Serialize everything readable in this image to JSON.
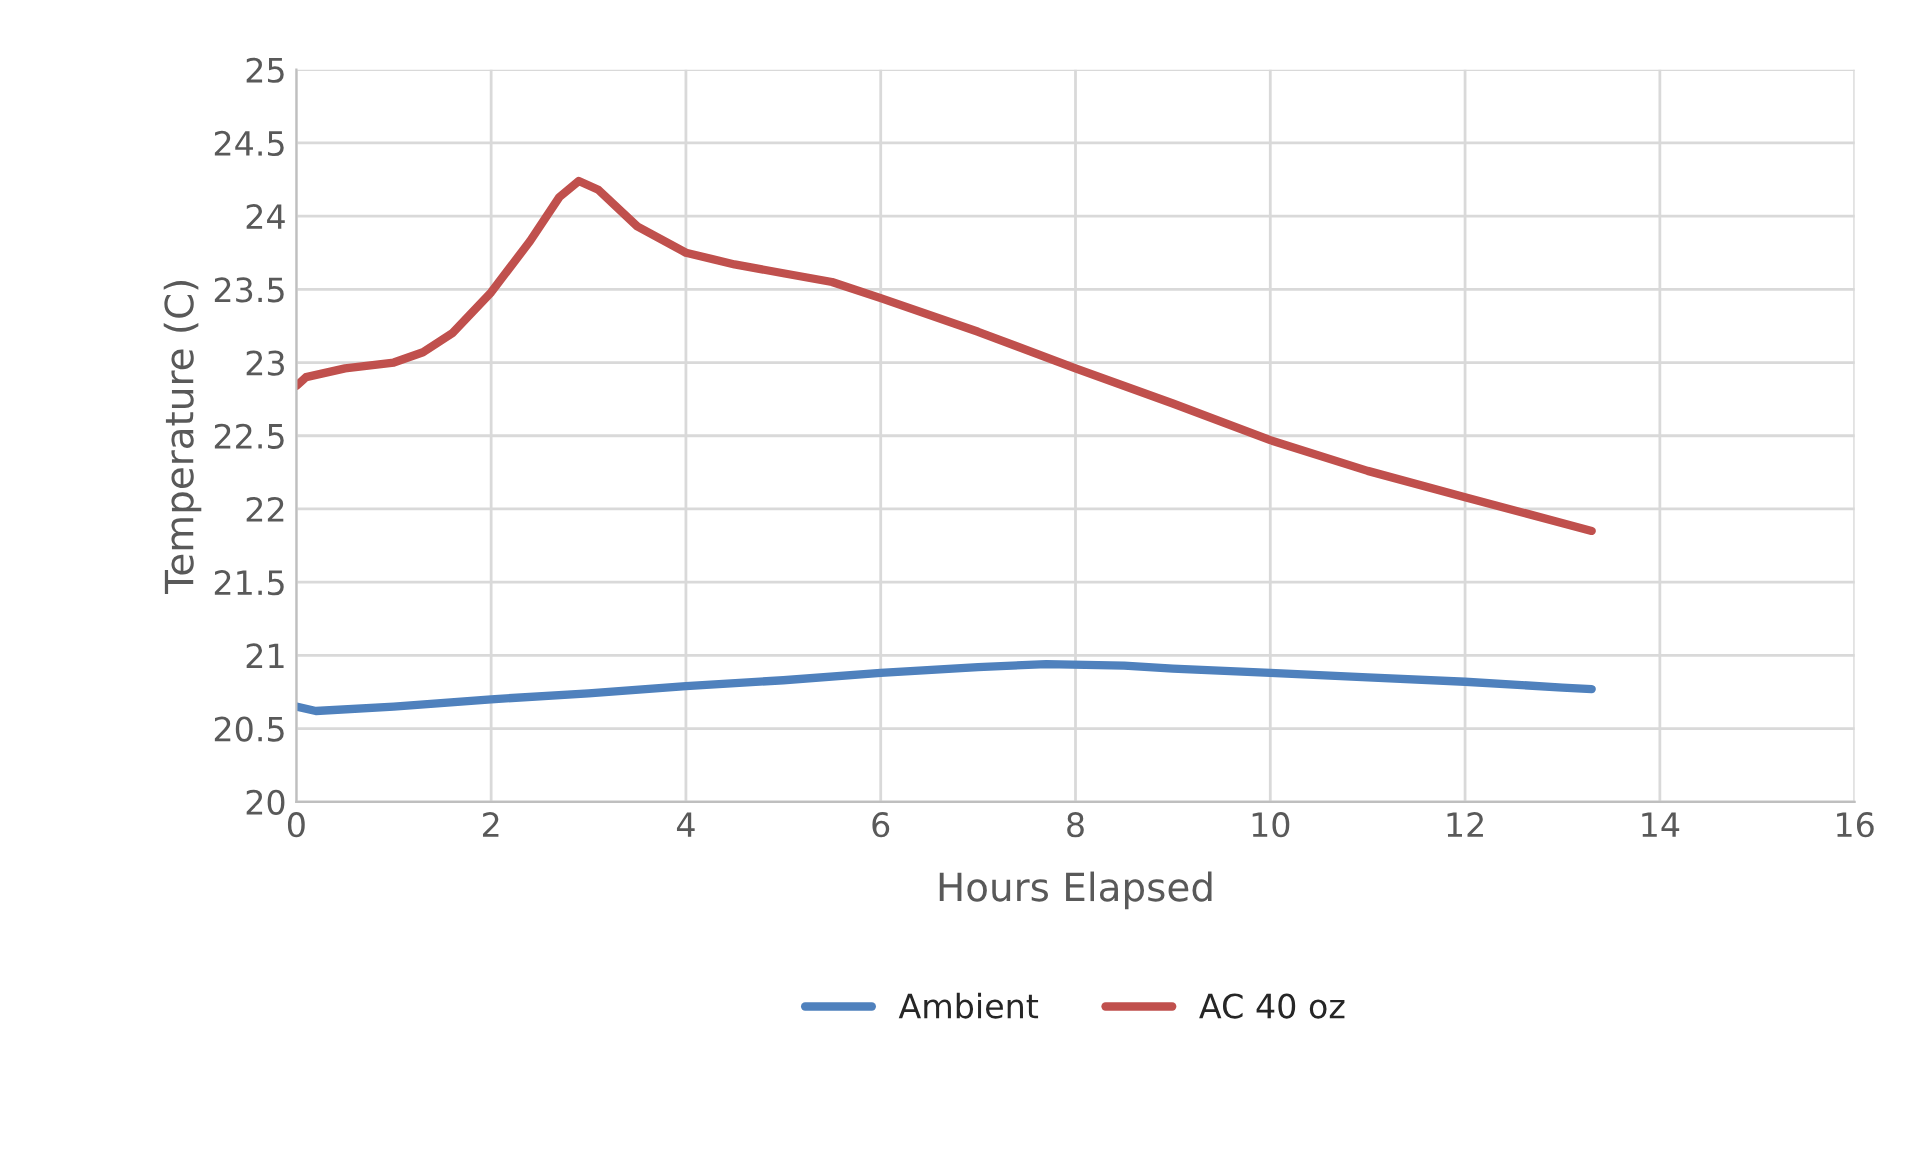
{
  "chart_data": {
    "type": "line",
    "xlabel": "Hours Elapsed",
    "ylabel": "Temperature (C)",
    "xlim": [
      0,
      16
    ],
    "xticks": [
      0,
      2,
      4,
      6,
      8,
      10,
      12,
      14,
      16
    ],
    "ylim": [
      20,
      25
    ],
    "yticks": [
      20,
      20.5,
      21,
      21.5,
      22,
      22.5,
      23,
      23.5,
      24,
      24.5,
      25
    ],
    "grid": true,
    "legend": "bottom",
    "line_style": "solid",
    "marker": "none",
    "series": [
      {
        "name": "Ambient",
        "color": "#4f81bd",
        "x": [
          0,
          0.2,
          1,
          2,
          3,
          4,
          5,
          6,
          7,
          7.7,
          8.5,
          9,
          10,
          11,
          12,
          13,
          13.3
        ],
        "values": [
          20.65,
          20.62,
          20.65,
          20.7,
          20.74,
          20.79,
          20.83,
          20.88,
          20.92,
          20.94,
          20.93,
          20.91,
          20.88,
          20.85,
          20.82,
          20.78,
          20.77
        ]
      },
      {
        "name": "AC 40 oz",
        "color": "#c0504d",
        "x": [
          0,
          0.1,
          0.5,
          1,
          1.3,
          1.6,
          2,
          2.4,
          2.7,
          2.9,
          3.1,
          3.5,
          4,
          4.5,
          5,
          5.5,
          6,
          7,
          8,
          9,
          10,
          11,
          12,
          13.3
        ],
        "values": [
          22.84,
          22.9,
          22.96,
          23.0,
          23.07,
          23.2,
          23.48,
          23.83,
          24.13,
          24.24,
          24.18,
          23.93,
          23.75,
          23.67,
          23.61,
          23.55,
          23.44,
          23.21,
          22.96,
          22.72,
          22.47,
          22.26,
          22.08,
          21.85
        ]
      }
    ]
  }
}
